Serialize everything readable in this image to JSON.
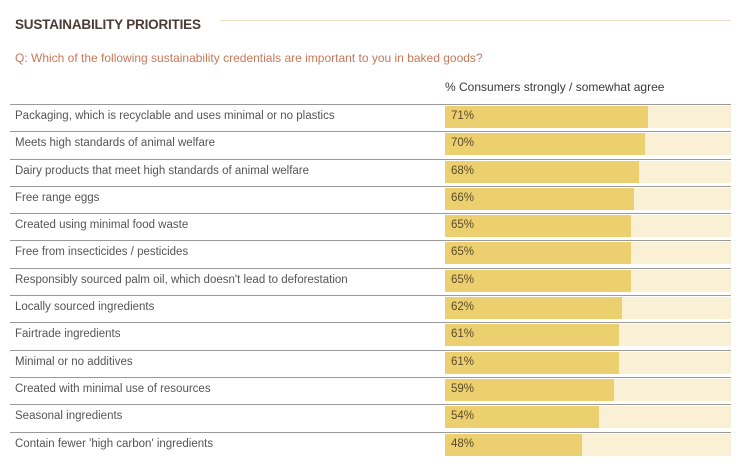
{
  "chart_data": {
    "type": "bar",
    "orientation": "horizontal",
    "title": "SUSTAINABILITY PRIORITIES",
    "subtitle": "Q: Which of the following sustainability credentials are important to you in baked goods?",
    "column_header": "% Consumers strongly / somewhat agree",
    "xlim": [
      0,
      100
    ],
    "unit": "%",
    "colors": {
      "bar": "#ecd06f",
      "track": "#faf0d6",
      "title": "#4a3c35",
      "question": "#c9785a"
    },
    "categories": [
      "Packaging, which is recyclable and uses minimal or no plastics",
      "Meets high standards of animal welfare",
      "Dairy products that meet high standards of animal welfare",
      "Free range eggs",
      "Created using minimal food waste",
      "Free from insecticides / pesticides",
      "Responsibly sourced palm oil, which doesn't lead to deforestation",
      "Locally sourced ingredients",
      "Fairtrade ingredients",
      "Minimal or no additives",
      "Created with minimal use of resources",
      "Seasonal ingredients",
      "Contain fewer 'high carbon' ingredients"
    ],
    "values": [
      71,
      70,
      68,
      66,
      65,
      65,
      65,
      62,
      61,
      61,
      59,
      54,
      48
    ],
    "labels": [
      "71%",
      "70%",
      "68%",
      "66%",
      "65%",
      "65%",
      "65%",
      "62%",
      "61%",
      "61%",
      "59%",
      "54%",
      "48%"
    ]
  }
}
